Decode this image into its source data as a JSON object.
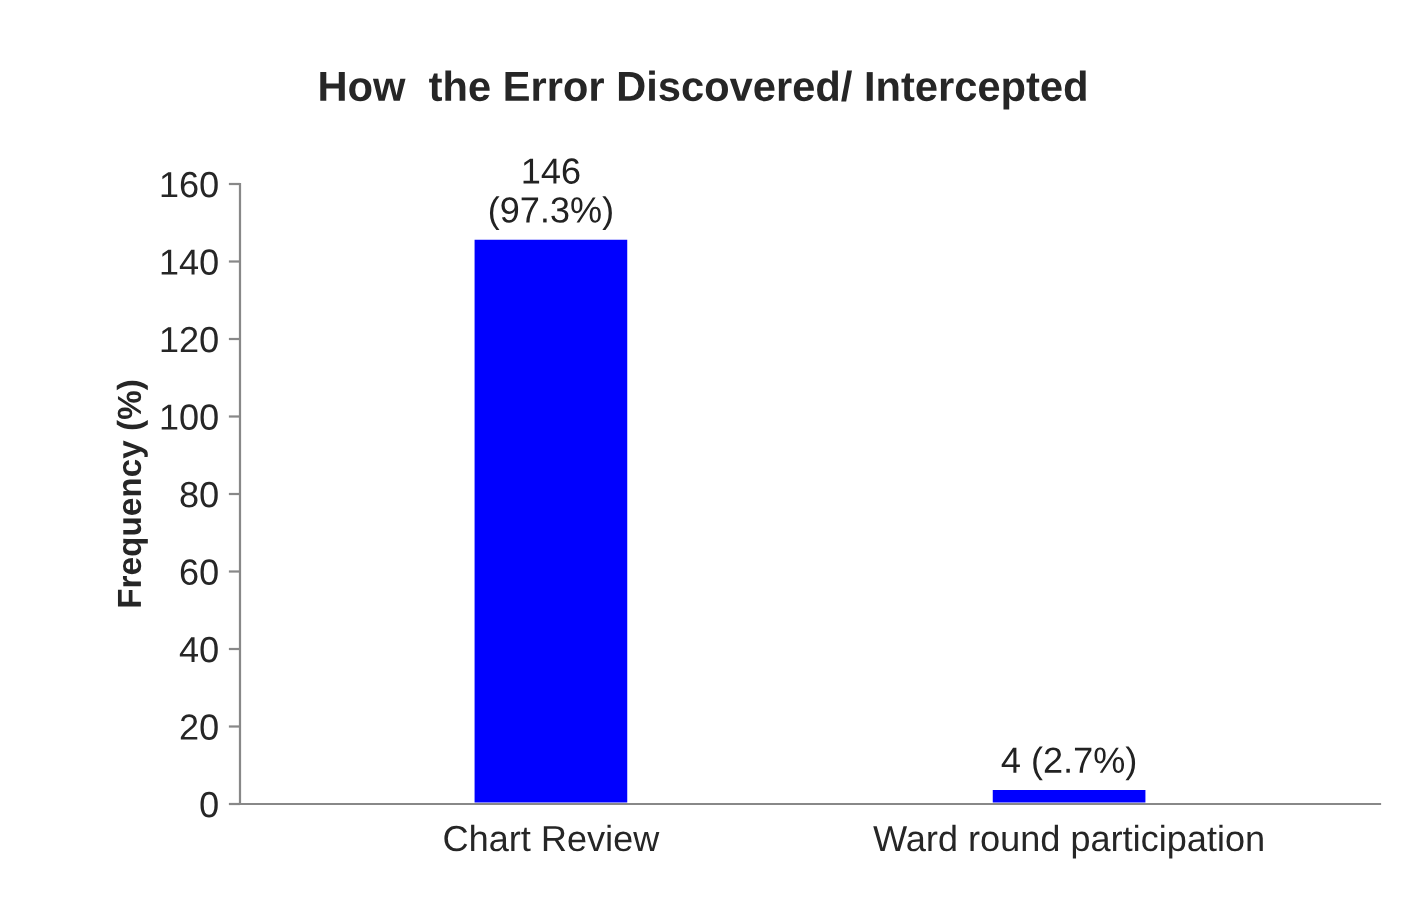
{
  "chart_data": {
    "type": "bar",
    "title": "How  the Error Discovered/ Intercepted",
    "ylabel": "Frequency (%)",
    "categories": [
      "Chart Review",
      "Ward round participation"
    ],
    "values": [
      146,
      4
    ],
    "color": "#0000ff",
    "value_labels": [
      "146\n(97.3%)",
      "4 (2.7%)"
    ],
    "ylim": [
      0,
      160
    ],
    "yticks": [
      0,
      20,
      40,
      60,
      80,
      100,
      120,
      140,
      160
    ],
    "grid": false
  }
}
